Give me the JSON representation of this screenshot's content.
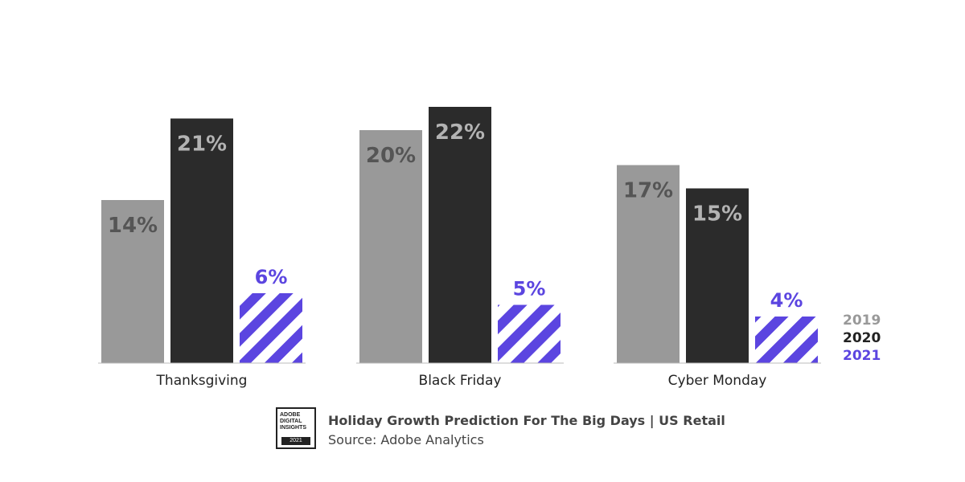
{
  "chart_data": {
    "type": "bar",
    "title": "Holiday Growth Prediction For The Big Days | US Retail",
    "source": "Source: Adobe Analytics",
    "categories": [
      "Thanksgiving",
      "Black Friday",
      "Cyber Monday"
    ],
    "series": [
      {
        "name": "2019",
        "values": [
          14,
          20,
          17
        ],
        "labels": [
          "14%",
          "20%",
          "17%"
        ],
        "color": "#999999",
        "label_color": "#555555",
        "pattern": "solid"
      },
      {
        "name": "2020",
        "values": [
          21,
          22,
          15
        ],
        "labels": [
          "21%",
          "22%",
          "15%"
        ],
        "color": "#2b2b2b",
        "label_color": "#b3b3b3",
        "pattern": "solid"
      },
      {
        "name": "2021",
        "values": [
          6,
          5,
          4
        ],
        "labels": [
          "6%",
          "5%",
          "4%"
        ],
        "color": "#5b45e0",
        "label_color": "#5b45e0",
        "pattern": "diagonal-stripes"
      }
    ],
    "xlabel": "",
    "ylabel": "",
    "ylim": [
      0,
      22
    ],
    "grid": false,
    "legend": "bottom-right"
  },
  "badge": {
    "lines": [
      "ADOBE",
      "DIGITAL",
      "INSIGHTS"
    ],
    "year": "2021"
  },
  "colors": {
    "text_dark": "#444444",
    "baseline": "#bbbbbb"
  }
}
